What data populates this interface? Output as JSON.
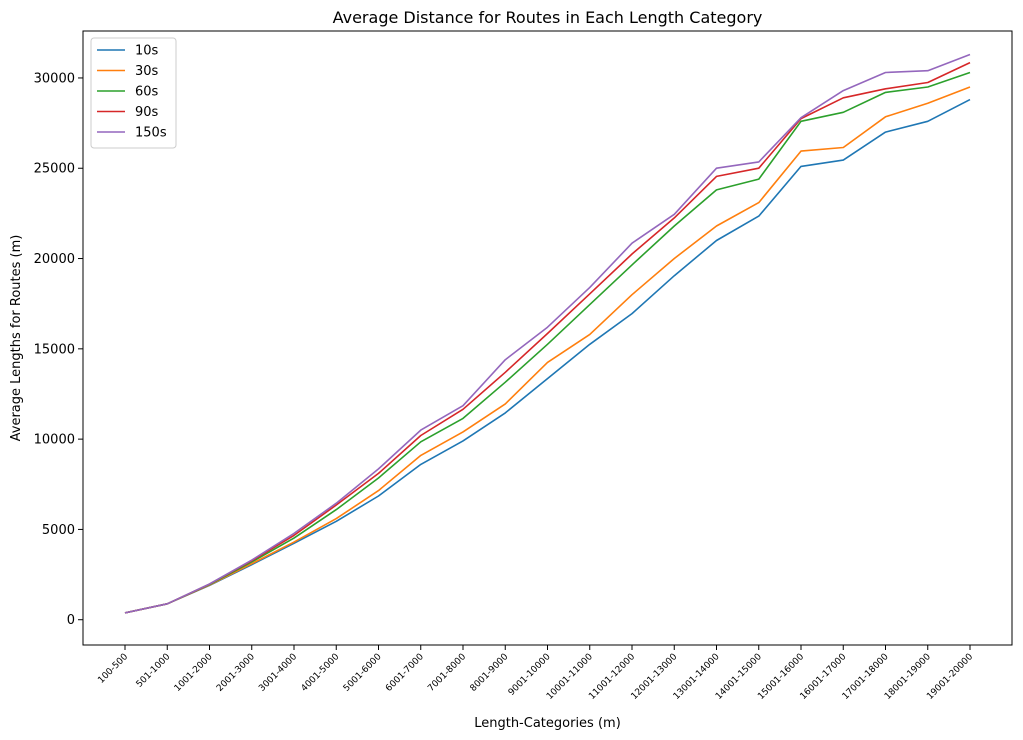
{
  "chart_data": {
    "type": "line",
    "title": "Average Distance for Routes in Each Length Category",
    "xlabel": "Length-Categories (m)",
    "ylabel": "Average Lengths for Routes (m)",
    "categories": [
      "100-500",
      "501-1000",
      "1001-2000",
      "2001-3000",
      "3001-4000",
      "4001-5000",
      "5001-6000",
      "6001-7000",
      "7001-8000",
      "8001-9000",
      "9001-10000",
      "10001-11000",
      "11001-12000",
      "12001-13000",
      "13001-14000",
      "14001-15000",
      "15001-16000",
      "16001-17000",
      "17001-18000",
      "18001-19000",
      "19001-20000"
    ],
    "ylim": [
      -1400,
      32600
    ],
    "yticks": [
      0,
      5000,
      10000,
      15000,
      20000,
      25000,
      30000
    ],
    "grid": false,
    "legend_position": "top-left",
    "series": [
      {
        "name": "10s",
        "color": "#1f77b4",
        "values": [
          380,
          880,
          1900,
          3050,
          4230,
          5450,
          6850,
          8600,
          9900,
          11450,
          13350,
          15250,
          16950,
          19050,
          21000,
          22350,
          25100,
          25450,
          27000,
          27600,
          28800
        ]
      },
      {
        "name": "30s",
        "color": "#ff7f0e",
        "values": [
          380,
          880,
          1920,
          3100,
          4300,
          5600,
          7150,
          9100,
          10400,
          11950,
          14250,
          15800,
          18000,
          20000,
          21800,
          23100,
          25950,
          26150,
          27850,
          28600,
          29500
        ]
      },
      {
        "name": "60s",
        "color": "#2ca02c",
        "values": [
          380,
          880,
          1950,
          3200,
          4520,
          6100,
          7850,
          9850,
          11150,
          13150,
          15250,
          17450,
          19650,
          21800,
          23800,
          24400,
          27600,
          28100,
          29200,
          29500,
          30300
        ]
      },
      {
        "name": "90s",
        "color": "#d62728",
        "values": [
          380,
          880,
          1970,
          3270,
          4670,
          6350,
          8100,
          10200,
          11650,
          13700,
          15850,
          18050,
          20250,
          22250,
          24550,
          25000,
          27750,
          28900,
          29400,
          29750,
          30850
        ]
      },
      {
        "name": "150s",
        "color": "#9467bd",
        "values": [
          380,
          880,
          1980,
          3300,
          4780,
          6450,
          8350,
          10500,
          11850,
          14400,
          16200,
          18400,
          20850,
          22450,
          25000,
          25350,
          27800,
          29300,
          30300,
          30400,
          31300
        ]
      }
    ]
  }
}
